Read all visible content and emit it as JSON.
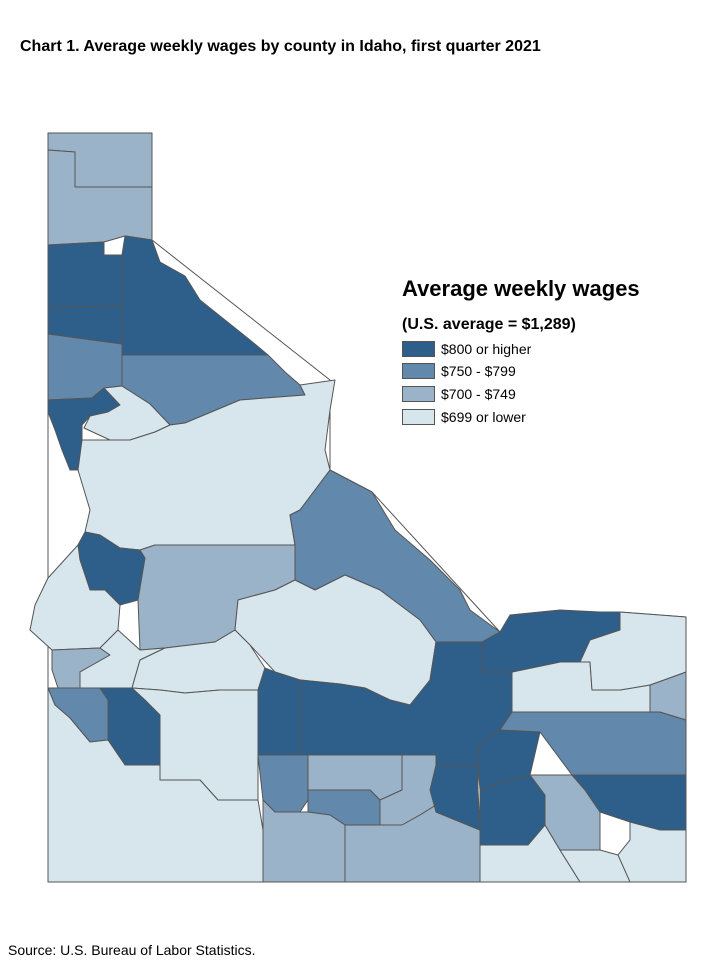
{
  "title": "Chart 1. Average weekly wages by county in Idaho, first quarter 2021",
  "legend": {
    "title": "Average weekly wages",
    "subtitle": "(U.S. average = $1,289)",
    "items": [
      {
        "label": "$800 or higher",
        "color": "#2e5f8a"
      },
      {
        "label": "$750 - $799",
        "color": "#6288ab"
      },
      {
        "label": "$700 - $749",
        "color": "#9ab3c8"
      },
      {
        "label": "$699 or lower",
        "color": "#d7e5ec"
      }
    ]
  },
  "source": "Source: U.S. Bureau of Labor Statistics."
}
